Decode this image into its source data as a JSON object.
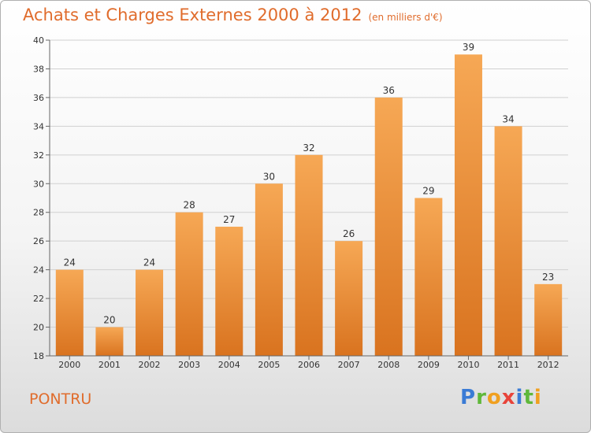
{
  "title": "Achats et Charges Externes 2000 à 2012",
  "subtitle": "(en milliers d'€)",
  "place": "PONTRU",
  "logo": {
    "letters": [
      "P",
      "r",
      "o",
      "x",
      "i",
      "t",
      "i"
    ],
    "colors": [
      "#3a7bd5",
      "#5fb83a",
      "#f0a020",
      "#e8443a",
      "#3a7bd5",
      "#5fb83a",
      "#f0a020"
    ]
  },
  "colors": {
    "bar_light": "#f6a855",
    "bar_dark": "#d9731f",
    "accent": "#e06c2c"
  },
  "chart_data": {
    "type": "bar",
    "title": "Achats et Charges Externes 2000 à 2012",
    "subtitle": "(en milliers d'€)",
    "categories": [
      "2000",
      "2001",
      "2002",
      "2003",
      "2004",
      "2005",
      "2006",
      "2007",
      "2008",
      "2009",
      "2010",
      "2011",
      "2012"
    ],
    "values": [
      24,
      20,
      24,
      28,
      27,
      30,
      32,
      26,
      36,
      29,
      39,
      34,
      23
    ],
    "ylim": [
      18,
      40
    ],
    "yticks": [
      18,
      20,
      22,
      24,
      26,
      28,
      30,
      32,
      34,
      36,
      38,
      40
    ],
    "grid": true,
    "data_labels": true
  }
}
